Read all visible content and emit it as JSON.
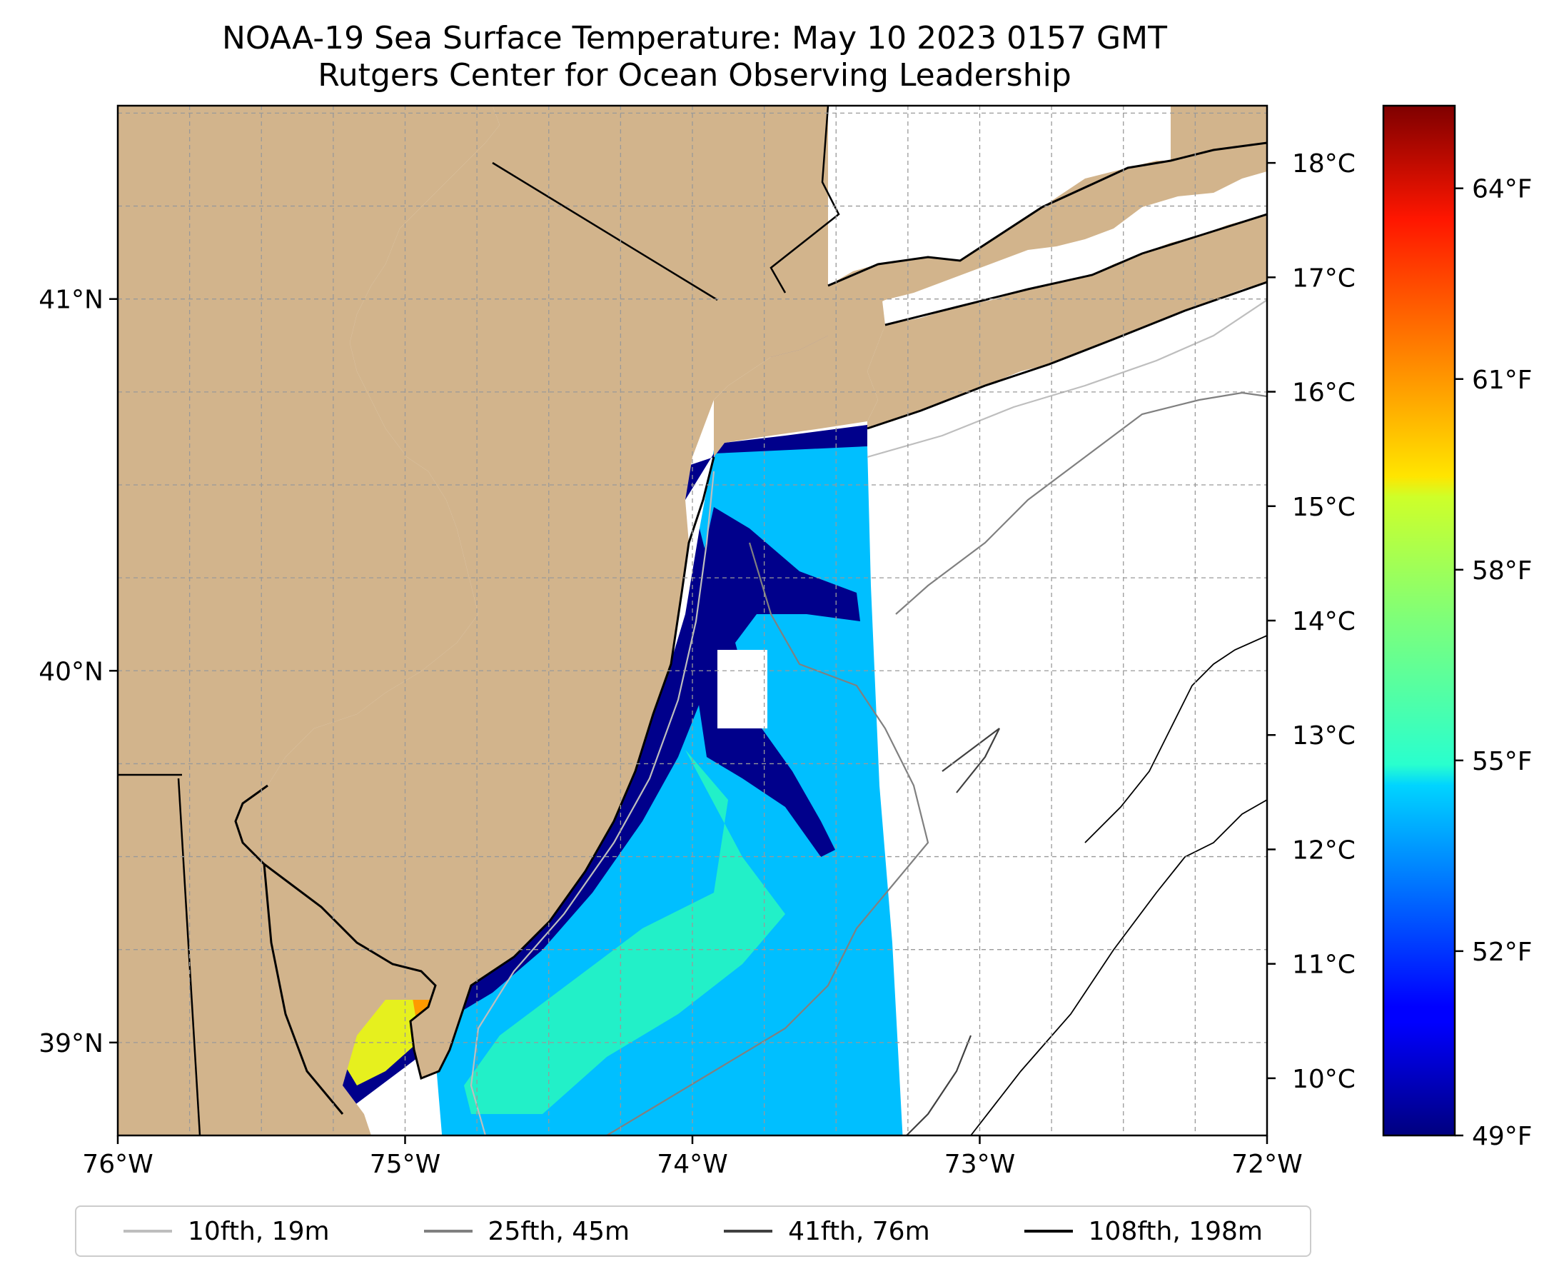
{
  "title": {
    "line1": "NOAA-19 Sea Surface Temperature: May 10 2023 0157 GMT",
    "line2": "Rutgers Center for Ocean Observing Leadership"
  },
  "map": {
    "lon_range": [
      -76.0,
      -72.0
    ],
    "lat_range": [
      38.75,
      41.52
    ],
    "lon_ticks": [
      {
        "value": -76,
        "label": "76°W"
      },
      {
        "value": -75,
        "label": "75°W"
      },
      {
        "value": -74,
        "label": "74°W"
      },
      {
        "value": -73,
        "label": "73°W"
      },
      {
        "value": -72,
        "label": "72°W"
      }
    ],
    "lat_ticks": [
      {
        "value": 39,
        "label": "39°N"
      },
      {
        "value": 40,
        "label": "40°N"
      },
      {
        "value": 41,
        "label": "41°N"
      }
    ],
    "land_color": "#D2B48C",
    "colors": {
      "very_cold": "#00008B",
      "cold": "#0050FF",
      "cool": "#00BFFF",
      "mild": "#22F0C8",
      "warm": "#E6F01E",
      "hot": "#FF9A00"
    }
  },
  "colorbar": {
    "colormap": "jet",
    "celsius_range": [
      9.5,
      18.5
    ],
    "celsius_ticks": [
      "10°C",
      "11°C",
      "12°C",
      "13°C",
      "14°C",
      "15°C",
      "16°C",
      "17°C",
      "18°C"
    ],
    "fahrenheit_ticks": [
      "49°F",
      "52°F",
      "55°F",
      "58°F",
      "61°F",
      "64°F"
    ]
  },
  "legend": {
    "items": [
      {
        "label": "10fth, 19m",
        "color": "#BEBEBE"
      },
      {
        "label": "25fth, 45m",
        "color": "#808080"
      },
      {
        "label": "41fth, 76m",
        "color": "#404040"
      },
      {
        "label": "108fth, 198m",
        "color": "#000000"
      }
    ]
  }
}
